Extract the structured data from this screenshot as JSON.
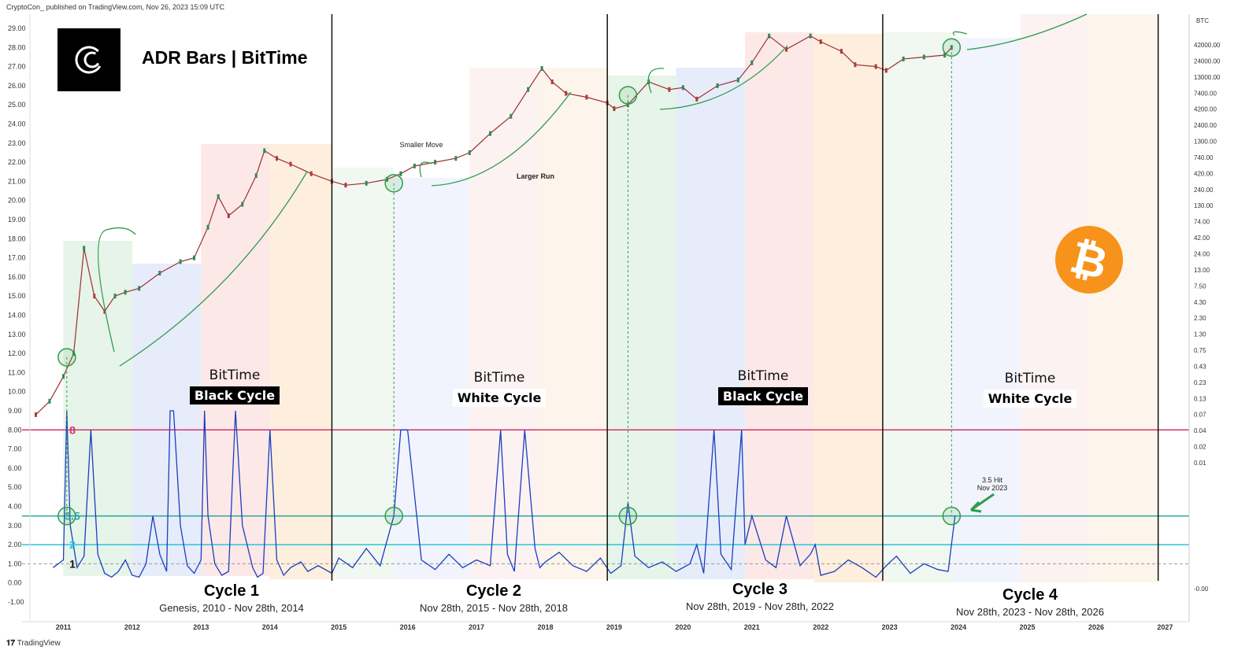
{
  "header": {
    "published_text": "CryptoCon_ published on TradingView.com, Nov 26, 2023 15:09 UTC",
    "title": "ADR Bars | BitTime",
    "footer_brand": "TradingView",
    "logo_name": "cryptocon-logo",
    "btc_unit": "BTC"
  },
  "colors": {
    "line_8": "#d6336c",
    "line_35": "#26a69a",
    "line_2": "#26c6da",
    "adr": "#1a3fbf",
    "bitcoin": "#f7931a",
    "arrow": "#2e9d4a"
  },
  "bittime_labels": [
    {
      "l1": "BitTime",
      "l2": "Black Cycle",
      "style": "black"
    },
    {
      "l1": "BitTime",
      "l2": "White Cycle",
      "style": "white"
    },
    {
      "l1": "BitTime",
      "l2": "Black Cycle",
      "style": "black"
    },
    {
      "l1": "BitTime",
      "l2": "White Cycle",
      "style": "white"
    }
  ],
  "cycles": [
    {
      "name": "Cycle 1",
      "dates": "Genesis, 2010 - Nov 28th, 2014"
    },
    {
      "name": "Cycle 2",
      "dates": "Nov 28th, 2015 - Nov 28th, 2018"
    },
    {
      "name": "Cycle 3",
      "dates": "Nov 28th, 2019 - Nov 28th, 2022"
    },
    {
      "name": "Cycle 4",
      "dates": "Nov 28th, 2023 - Nov 28th, 2026"
    }
  ],
  "annotations": {
    "smaller_move": "Smaller Move",
    "larger_run": "Larger Run",
    "hit_line1": "3.5 Hit",
    "hit_line2": "Nov 2023"
  },
  "chart_data": {
    "type": "line",
    "title": "ADR Bars | BitTime",
    "left_axis_ticks": [
      "29.00",
      "28.00",
      "27.00",
      "26.00",
      "25.00",
      "24.00",
      "23.00",
      "22.00",
      "21.00",
      "20.00",
      "19.00",
      "18.00",
      "17.00",
      "16.00",
      "15.00",
      "14.00",
      "13.00",
      "12.00",
      "11.00",
      "10.00",
      "9.00",
      "8.00",
      "7.00",
      "6.00",
      "5.00",
      "4.00",
      "3.00",
      "2.00",
      "1.00",
      "0.00",
      "-1.00"
    ],
    "left_ylim": [
      -1,
      29
    ],
    "right_axis_ticks": [
      "42000.00",
      "24000.00",
      "13000.00",
      "7400.00",
      "4200.00",
      "2400.00",
      "1300.00",
      "740.00",
      "420.00",
      "240.00",
      "130.00",
      "74.00",
      "42.00",
      "24.00",
      "13.00",
      "7.50",
      "4.30",
      "2.30",
      "1.30",
      "0.75",
      "0.43",
      "0.23",
      "0.13",
      "0.07",
      "0.04",
      "0.02",
      "0.01",
      "-0.00"
    ],
    "x_ticks": [
      "2011",
      "2012",
      "2013",
      "2014",
      "2015",
      "2016",
      "2017",
      "2018",
      "2019",
      "2020",
      "2021",
      "2022",
      "2023",
      "2024",
      "2025",
      "2026",
      "2027"
    ],
    "reference_lines": [
      {
        "label": "8",
        "value": 8
      },
      {
        "label": "3.5",
        "value": 3.5
      },
      {
        "label": "2",
        "value": 2
      },
      {
        "label": "1",
        "value": 1
      }
    ],
    "cycle_boundaries": [
      2014.9,
      2018.9,
      2022.9,
      2026.9
    ],
    "cycle_start_markers": [
      2011.05,
      2015.8,
      2019.2,
      2023.9
    ],
    "price_series": {
      "name": "BTC price (log)",
      "x": [
        2010.6,
        2010.8,
        2011.0,
        2011.15,
        2011.3,
        2011.45,
        2011.6,
        2011.75,
        2011.9,
        2012.1,
        2012.4,
        2012.7,
        2012.9,
        2013.1,
        2013.25,
        2013.4,
        2013.6,
        2013.8,
        2013.92,
        2014.1,
        2014.3,
        2014.6,
        2014.9,
        2015.1,
        2015.4,
        2015.7,
        2015.9,
        2016.1,
        2016.4,
        2016.7,
        2016.9,
        2017.2,
        2017.5,
        2017.75,
        2017.95,
        2018.1,
        2018.3,
        2018.6,
        2018.9,
        2019.0,
        2019.2,
        2019.5,
        2019.8,
        2020.0,
        2020.2,
        2020.5,
        2020.8,
        2021.0,
        2021.25,
        2021.5,
        2021.85,
        2022.0,
        2022.3,
        2022.5,
        2022.8,
        2022.95,
        2023.2,
        2023.5,
        2023.8,
        2023.9
      ],
      "y": [
        8.8,
        9.5,
        10.8,
        12.0,
        17.5,
        15.0,
        14.2,
        15.0,
        15.2,
        15.4,
        16.2,
        16.8,
        17.0,
        18.6,
        20.2,
        19.2,
        19.8,
        21.3,
        22.6,
        22.2,
        21.9,
        21.4,
        21.0,
        20.8,
        20.9,
        21.1,
        21.4,
        21.8,
        22.0,
        22.2,
        22.5,
        23.5,
        24.4,
        25.8,
        26.9,
        26.2,
        25.6,
        25.4,
        25.1,
        24.8,
        25.0,
        26.2,
        25.8,
        25.9,
        25.3,
        26.0,
        26.3,
        27.2,
        28.6,
        27.9,
        28.6,
        28.3,
        27.8,
        27.1,
        27.0,
        26.8,
        27.4,
        27.5,
        27.6,
        28.0
      ]
    },
    "adr_series": {
      "name": "ADR Bars",
      "x": [
        2010.85,
        2011.0,
        2011.05,
        2011.1,
        2011.2,
        2011.3,
        2011.4,
        2011.5,
        2011.6,
        2011.7,
        2011.8,
        2011.9,
        2012.0,
        2012.1,
        2012.2,
        2012.3,
        2012.4,
        2012.5,
        2012.55,
        2012.6,
        2012.7,
        2012.8,
        2012.9,
        2013.0,
        2013.05,
        2013.1,
        2013.2,
        2013.3,
        2013.4,
        2013.5,
        2013.6,
        2013.75,
        2013.82,
        2013.9,
        2014.0,
        2014.1,
        2014.2,
        2014.3,
        2014.45,
        2014.55,
        2014.7,
        2014.9,
        2015.0,
        2015.2,
        2015.4,
        2015.6,
        2015.8,
        2015.9,
        2016.0,
        2016.2,
        2016.4,
        2016.6,
        2016.8,
        2017.0,
        2017.2,
        2017.35,
        2017.45,
        2017.55,
        2017.7,
        2017.85,
        2017.92,
        2018.0,
        2018.2,
        2018.4,
        2018.6,
        2018.8,
        2018.95,
        2019.1,
        2019.2,
        2019.3,
        2019.5,
        2019.7,
        2019.9,
        2020.1,
        2020.2,
        2020.3,
        2020.45,
        2020.55,
        2020.7,
        2020.85,
        2020.9,
        2021.0,
        2021.2,
        2021.35,
        2021.5,
        2021.7,
        2021.85,
        2021.92,
        2022.0,
        2022.2,
        2022.4,
        2022.6,
        2022.8,
        2022.95,
        2023.1,
        2023.3,
        2023.5,
        2023.7,
        2023.85,
        2023.95
      ],
      "y": [
        0.8,
        1.2,
        9.0,
        3.0,
        0.8,
        1.4,
        8.0,
        1.5,
        0.5,
        0.3,
        0.6,
        1.2,
        0.4,
        0.3,
        1.0,
        3.5,
        1.5,
        0.6,
        9.0,
        9.0,
        3.0,
        0.9,
        0.5,
        1.2,
        9.0,
        3.5,
        1.0,
        0.4,
        0.6,
        9.0,
        3.0,
        0.8,
        0.3,
        0.5,
        8.0,
        1.2,
        0.4,
        0.8,
        1.1,
        0.6,
        0.9,
        0.5,
        1.3,
        0.8,
        1.8,
        0.9,
        3.5,
        8.0,
        8.0,
        1.2,
        0.7,
        1.5,
        0.8,
        1.2,
        0.9,
        8.0,
        1.5,
        0.6,
        8.0,
        1.8,
        0.8,
        1.1,
        1.6,
        0.9,
        0.6,
        1.3,
        0.5,
        0.9,
        4.2,
        1.4,
        0.8,
        1.1,
        0.6,
        1.0,
        2.0,
        0.5,
        8.0,
        1.5,
        0.7,
        8.0,
        2.0,
        3.5,
        1.2,
        0.8,
        3.5,
        0.9,
        1.5,
        2.0,
        0.4,
        0.6,
        1.2,
        0.8,
        0.3,
        0.9,
        1.4,
        0.5,
        1.0,
        0.7,
        0.6,
        3.5
      ]
    },
    "xlim": [
      2010.4,
      2027.35
    ]
  }
}
